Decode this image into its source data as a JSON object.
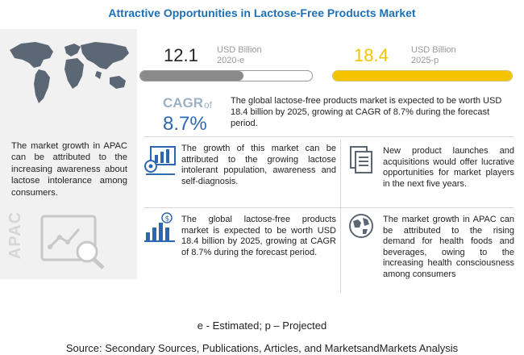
{
  "title": "Attractive Opportunities in Lactose-Free Products Market",
  "left_panel": {
    "text": "The market growth in APAC can be attributed to the increasing awareness about lactose intolerance among consumers.",
    "region_label": "APAC"
  },
  "metrics": [
    {
      "value": "12.1",
      "unit": "USD Billion",
      "year": "2020-e",
      "bar_color": "#8a8a8a"
    },
    {
      "value": "18.4",
      "unit": "USD Billion",
      "year": "2025-p",
      "bar_color": "#f5c400"
    }
  ],
  "cagr": {
    "label": "CAGR",
    "of": "of",
    "value": "8.7%",
    "text": "The global lactose-free products market is expected to be worth USD 18.4 billion by 2025, growing at CAGR of 8.7% during the forecast period."
  },
  "boxes": [
    {
      "text": "The growth of this market can be attributed to the growing lactose intolerant population, awareness and self-diagnosis.",
      "icon": "bar-chart-gear-icon"
    },
    {
      "text": "New product launches and acquisitions would offer lucrative opportunities for market players in the next five years.",
      "icon": "documents-icon"
    },
    {
      "text": "The global lactose-free products market is expected to be worth USD 18.4 billion by 2025, growing at CAGR of 8.7% during the forecast period.",
      "icon": "growth-chart-dollar-icon"
    },
    {
      "text": "The market growth in APAC can be attributed to the rising demand for health foods and beverages, owing to the increasing health consciousness among consumers",
      "icon": "globe-icon"
    }
  ],
  "footer": {
    "legend": "e - Estimated; p – Projected",
    "source": "Source: Secondary Sources, Publications, Articles, and MarketsandMarkets Analysis"
  },
  "colors": {
    "title": "#1f6fb4",
    "cagr_value": "#2e67b1",
    "accent_yellow": "#f5c400",
    "gray_bar": "#8a8a8a"
  }
}
